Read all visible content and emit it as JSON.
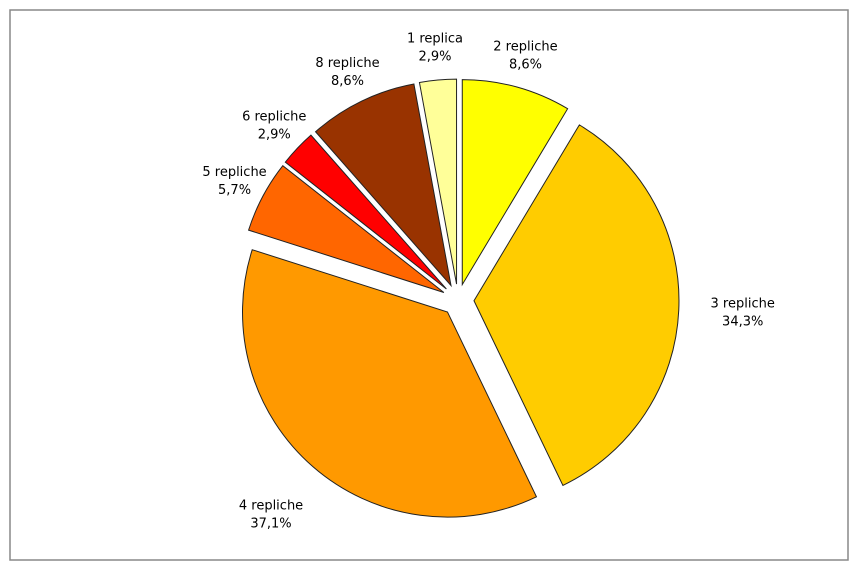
{
  "chart_data": {
    "type": "pie",
    "categories": [
      "2 repliche",
      "3 repliche",
      "4 repliche",
      "5 repliche",
      "6 repliche",
      "8 repliche",
      "1 replica"
    ],
    "values": [
      8.6,
      34.3,
      37.1,
      5.7,
      2.9,
      8.6,
      2.9
    ],
    "value_labels": [
      "8,6%",
      "34,3%",
      "37,1%",
      "5,7%",
      "2,9%",
      "8,6%",
      "2,9%"
    ],
    "colors": [
      "#ffff00",
      "#ffcc00",
      "#ff9900",
      "#ff6600",
      "#ff0000",
      "#993300",
      "#ffff99"
    ]
  }
}
